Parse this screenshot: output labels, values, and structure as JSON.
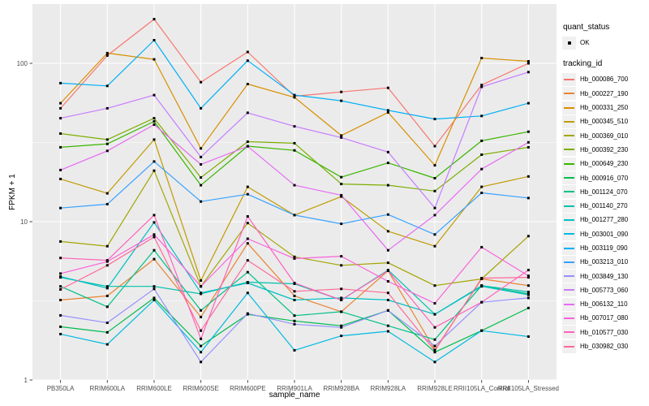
{
  "figure": {
    "background": "#FFFFFF",
    "panel_background": "#EBEBEB",
    "gridline_color": "#FFFFFF",
    "tick_label_color": "#4D4D4D",
    "axis_title_color": "#000000",
    "legend_key_background": "#F0F0F0"
  },
  "legend": {
    "quant_status_title": "quant_status",
    "quant_status_items": [
      {
        "label": "OK",
        "marker": "black-point"
      }
    ],
    "tracking_id_title": "tracking_id"
  },
  "chart_data": {
    "type": "line",
    "title": "",
    "xlabel": "sample_name",
    "ylabel": "FPKM + 1",
    "y_scale": "log10",
    "y_ticks": [
      1,
      10,
      100
    ],
    "y_minor_gridlines": [
      3.162,
      31.62
    ],
    "ylim": [
      1,
      235
    ],
    "grid": true,
    "legend_position": "right",
    "point_marker": {
      "shape": "point",
      "color": "#000000",
      "size": 3
    },
    "categories": [
      "PB350LA",
      "RRIM600LA",
      "RRIM600LE",
      "RRIM600SE",
      "RRIM600PE",
      "RRIM901LA",
      "RRIM928BA",
      "RRIM928LA",
      "RRIM928LE",
      "RRII105LA_Control",
      "RRII105LA_Stressed"
    ],
    "series": [
      {
        "name": "Hb_000086_700",
        "color": "#F8766D",
        "values": [
          52,
          112,
          190,
          76,
          118,
          62,
          66,
          70,
          30,
          73,
          100
        ]
      },
      {
        "name": "Hb_000227_190",
        "color": "#EA8331",
        "values": [
          3.2,
          3.4,
          5.8,
          2.5,
          7.3,
          3.4,
          2.7,
          4.9,
          1.55,
          4.35,
          3.95
        ]
      },
      {
        "name": "Hb_000331_250",
        "color": "#D89000",
        "values": [
          56,
          116,
          106,
          29,
          74,
          61,
          35,
          49,
          22.7,
          108,
          103
        ]
      },
      {
        "name": "Hb_000345_510",
        "color": "#C09B00",
        "values": [
          18.6,
          15.1,
          33,
          4.25,
          16.6,
          11,
          14.4,
          8.7,
          7,
          16.6,
          19.3
        ]
      },
      {
        "name": "Hb_000369_010",
        "color": "#A3A500",
        "values": [
          7.5,
          7,
          21,
          3.9,
          9.8,
          6,
          5.3,
          5.5,
          3.95,
          4.35,
          8.1
        ]
      },
      {
        "name": "Hb_000392_230",
        "color": "#7CAE00",
        "values": [
          36,
          33,
          45,
          19,
          32,
          31.3,
          17.3,
          17,
          15.6,
          26.5,
          29.5
        ]
      },
      {
        "name": "Hb_000649_230",
        "color": "#39B600",
        "values": [
          29.5,
          31,
          43,
          17,
          30,
          28.2,
          19.1,
          23.5,
          18.8,
          32.4,
          37
        ]
      },
      {
        "name": "Hb_000916_070",
        "color": "#00BB4E",
        "values": [
          2.17,
          2,
          3.3,
          1.64,
          2.6,
          2.36,
          2.2,
          2.75,
          1.5,
          2.05,
          2.85
        ]
      },
      {
        "name": "Hb_001124_070",
        "color": "#00C087",
        "values": [
          3.9,
          2.9,
          6.6,
          2.75,
          4.8,
          2.55,
          2.7,
          2.2,
          1.8,
          3.95,
          3.5
        ]
      },
      {
        "name": "Hb_001140_270",
        "color": "#00C1AB",
        "values": [
          4.45,
          3.9,
          3.9,
          3.5,
          4.15,
          4.05,
          3.2,
          4.95,
          2.6,
          3.95,
          3.6
        ]
      },
      {
        "name": "Hb_001277_280",
        "color": "#00BFC4",
        "values": [
          4.5,
          3.8,
          9.9,
          3.55,
          4.1,
          3.2,
          3.3,
          3.2,
          2.6,
          3.9,
          3.45
        ]
      },
      {
        "name": "Hb_003001_090",
        "color": "#00BAE0",
        "values": [
          1.95,
          1.68,
          3.2,
          1.5,
          3.55,
          1.54,
          1.9,
          2.03,
          1.3,
          2.05,
          1.88
        ]
      },
      {
        "name": "Hb_003119_090",
        "color": "#00B0F6",
        "values": [
          75,
          72,
          140,
          52,
          104,
          63,
          58,
          50.5,
          44.5,
          46.5,
          56
        ]
      },
      {
        "name": "Hb_003213_010",
        "color": "#35A2FF",
        "values": [
          12.2,
          12.9,
          24,
          13.4,
          14.9,
          11,
          9.7,
          11.1,
          8.3,
          15.2,
          14.1
        ]
      },
      {
        "name": "Hb_003849_130",
        "color": "#9590FF",
        "values": [
          2.56,
          2.3,
          3.76,
          1.3,
          2.63,
          2.25,
          2.15,
          2.75,
          1.64,
          3.1,
          3.3
        ]
      },
      {
        "name": "Hb_005773_060",
        "color": "#C77CFF",
        "values": [
          45,
          52,
          63,
          25.6,
          48.7,
          40,
          34,
          27.5,
          12.2,
          71,
          88
        ]
      },
      {
        "name": "Hb_006132_110",
        "color": "#E76BF3",
        "values": [
          21.2,
          28,
          41,
          23,
          29.9,
          17,
          14.7,
          6.6,
          11,
          21.5,
          31.7
        ]
      },
      {
        "name": "Hb_007017_080",
        "color": "#FA62DB",
        "values": [
          4.7,
          5.6,
          8.3,
          3.9,
          7.8,
          5.85,
          6.05,
          4.2,
          3.05,
          6.9,
          4.55
        ]
      },
      {
        "name": "Hb_010577_030",
        "color": "#FF62BC",
        "values": [
          5.9,
          5.7,
          11,
          1.82,
          10.8,
          4.1,
          3.2,
          4.9,
          2.15,
          3.1,
          4.95
        ]
      },
      {
        "name": "Hb_030982_030",
        "color": "#FF6A98",
        "values": [
          3.73,
          5.3,
          8,
          2.05,
          5.7,
          3.63,
          3.76,
          3.55,
          1.53,
          4.4,
          4.45
        ]
      }
    ]
  }
}
